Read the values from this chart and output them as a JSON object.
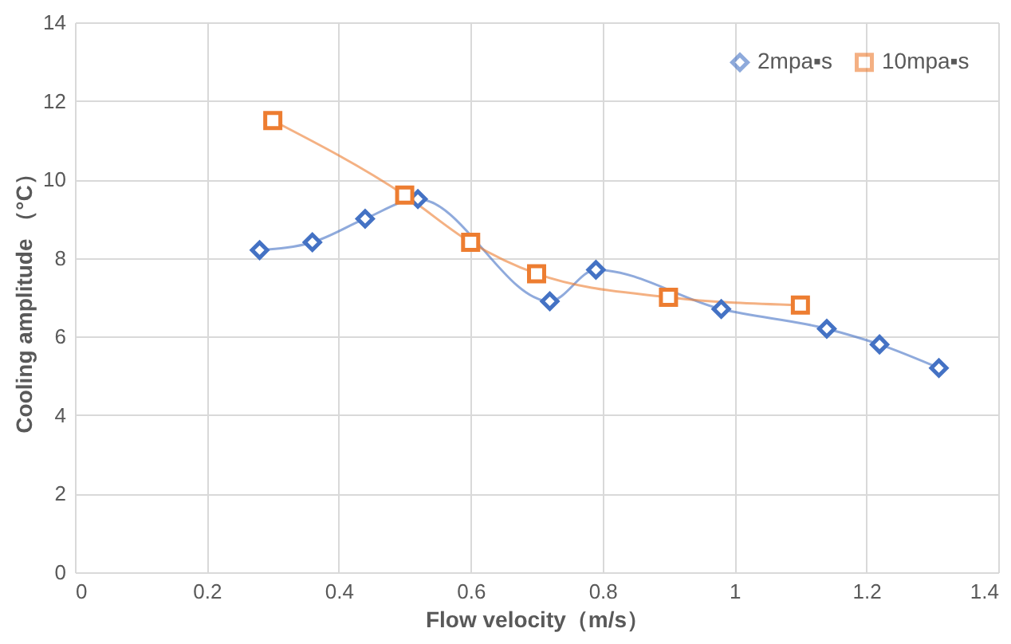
{
  "chart_data": {
    "type": "line",
    "xlabel": "Flow velocity（m/s）",
    "ylabel": "Cooling amplitude （°C）",
    "series": [
      {
        "name": "2mpa▪s",
        "color": "#4472c4",
        "marker": "diamond",
        "x": [
          0.28,
          0.36,
          0.44,
          0.52,
          0.72,
          0.79,
          0.98,
          1.14,
          1.22,
          1.31
        ],
        "values": [
          8.2,
          8.4,
          9.0,
          9.5,
          6.9,
          7.7,
          6.7,
          6.2,
          5.8,
          5.2
        ]
      },
      {
        "name": "10mpa▪s",
        "color": "#ed7d31",
        "marker": "square",
        "x": [
          0.3,
          0.5,
          0.6,
          0.7,
          0.9,
          1.1
        ],
        "values": [
          11.5,
          9.6,
          8.4,
          7.6,
          7.0,
          6.8
        ]
      }
    ],
    "xlim": [
      0,
      1.4
    ],
    "xticks": [
      0,
      0.2,
      0.4,
      0.6,
      0.8,
      1,
      1.2,
      1.4
    ],
    "ylim": [
      0,
      14
    ],
    "yticks": [
      0,
      2,
      4,
      6,
      8,
      10,
      12,
      14
    ],
    "grid": true,
    "legend": "top right",
    "line_style": "solid"
  }
}
